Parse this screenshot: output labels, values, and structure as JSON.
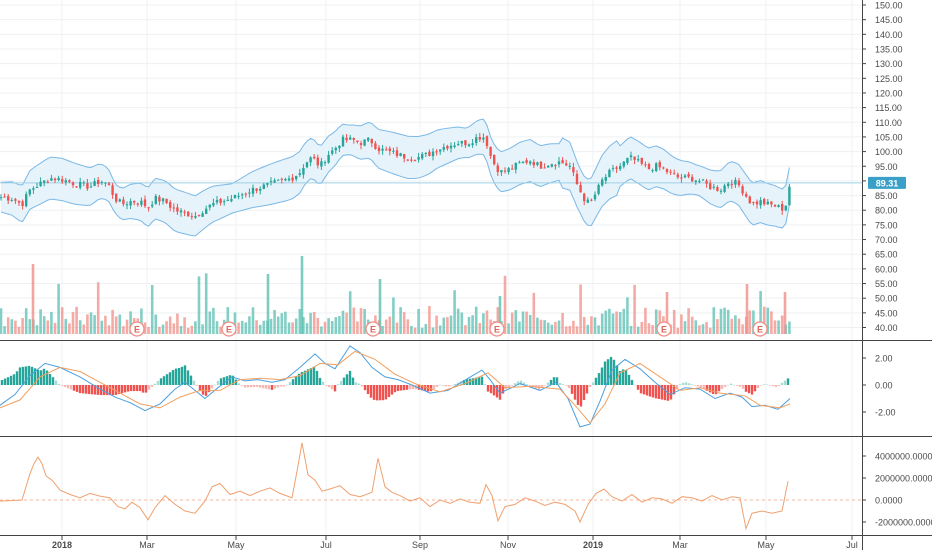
{
  "chart_data": [
    {
      "type": "candlestick",
      "panel": "price",
      "y_axis_ticks": [
        "150.00",
        "145.00",
        "140.00",
        "135.00",
        "130.00",
        "125.00",
        "120.00",
        "115.00",
        "110.00",
        "105.00",
        "100.00",
        "95.00",
        "90.00",
        "85.00",
        "80.00",
        "75.00",
        "70.00",
        "65.00",
        "60.00",
        "55.00",
        "50.00",
        "45.00",
        "40.00"
      ],
      "ylim": [
        37.5,
        151.5
      ],
      "last_price_label": "89.31",
      "last_price": 89.31,
      "overlay": "bollinger-bands",
      "price_path": [
        [
          0,
          84.5
        ],
        [
          12,
          84
        ],
        [
          22,
          82
        ],
        [
          30,
          87
        ],
        [
          40,
          89
        ],
        [
          50,
          91
        ],
        [
          62,
          90.5
        ],
        [
          75,
          89
        ],
        [
          90,
          88
        ],
        [
          100,
          90
        ],
        [
          108,
          89
        ],
        [
          115,
          84
        ],
        [
          122,
          82
        ],
        [
          130,
          83
        ],
        [
          140,
          83
        ],
        [
          148,
          81
        ],
        [
          155,
          84
        ],
        [
          165,
          83
        ],
        [
          175,
          80
        ],
        [
          185,
          79
        ],
        [
          195,
          78
        ],
        [
          203,
          80
        ],
        [
          212,
          82
        ],
        [
          222,
          83
        ],
        [
          232,
          84
        ],
        [
          242,
          85.5
        ],
        [
          252,
          87
        ],
        [
          262,
          88
        ],
        [
          272,
          89
        ],
        [
          282,
          90
        ],
        [
          292,
          91
        ],
        [
          300,
          93
        ],
        [
          305,
          96
        ],
        [
          312,
          98
        ],
        [
          320,
          95
        ],
        [
          328,
          99
        ],
        [
          335,
          101
        ],
        [
          342,
          104
        ],
        [
          352,
          104
        ],
        [
          360,
          103
        ],
        [
          370,
          104
        ],
        [
          378,
          101
        ],
        [
          388,
          100
        ],
        [
          398,
          99
        ],
        [
          408,
          98
        ],
        [
          418,
          98
        ],
        [
          428,
          99
        ],
        [
          438,
          101
        ],
        [
          448,
          102
        ],
        [
          458,
          103
        ],
        [
          468,
          103
        ],
        [
          478,
          105
        ],
        [
          485,
          105
        ],
        [
          492,
          97
        ],
        [
          500,
          93
        ],
        [
          510,
          94
        ],
        [
          520,
          96
        ],
        [
          530,
          97
        ],
        [
          540,
          95
        ],
        [
          550,
          96
        ],
        [
          560,
          96.5
        ],
        [
          570,
          95
        ],
        [
          578,
          88
        ],
        [
          584,
          84
        ],
        [
          590,
          82
        ],
        [
          596,
          86
        ],
        [
          602,
          90
        ],
        [
          610,
          93
        ],
        [
          620,
          95
        ],
        [
          630,
          98
        ],
        [
          640,
          96
        ],
        [
          648,
          94
        ],
        [
          656,
          95
        ],
        [
          664,
          94
        ],
        [
          672,
          92
        ],
        [
          680,
          91
        ],
        [
          690,
          91
        ],
        [
          700,
          90
        ],
        [
          710,
          88
        ],
        [
          720,
          87
        ],
        [
          730,
          90
        ],
        [
          738,
          89
        ],
        [
          744,
          86
        ],
        [
          752,
          82
        ],
        [
          760,
          83
        ],
        [
          768,
          82
        ],
        [
          775,
          81.5
        ],
        [
          782,
          80.5
        ],
        [
          786,
          82
        ],
        [
          790,
          89.31
        ]
      ],
      "earnings_markers": [
        "E",
        "E",
        "E",
        "E",
        "E",
        "E"
      ]
    },
    {
      "type": "bar",
      "panel": "volume",
      "description_colors": {
        "up": "#5bbfb2",
        "down": "#f08f87"
      }
    },
    {
      "type": "line",
      "panel": "macd",
      "y_axis_ticks": [
        "2.00",
        "0.00",
        "-2.00"
      ],
      "ylim": [
        -3.2,
        3.2
      ],
      "macd_path": [
        [
          0,
          -1.5
        ],
        [
          15,
          -0.7
        ],
        [
          30,
          0.7
        ],
        [
          45,
          1.6
        ],
        [
          60,
          1.3
        ],
        [
          80,
          0.6
        ],
        [
          100,
          -0.3
        ],
        [
          115,
          -0.9
        ],
        [
          130,
          -1.3
        ],
        [
          145,
          -1.9
        ],
        [
          160,
          -1.4
        ],
        [
          175,
          -0.3
        ],
        [
          185,
          0.2
        ],
        [
          195,
          -0.4
        ],
        [
          205,
          -1.0
        ],
        [
          218,
          -0.2
        ],
        [
          232,
          0.6
        ],
        [
          245,
          0.3
        ],
        [
          258,
          0.4
        ],
        [
          272,
          0.2
        ],
        [
          285,
          0.4
        ],
        [
          300,
          1.3
        ],
        [
          315,
          2.3
        ],
        [
          325,
          1.6
        ],
        [
          335,
          1.2
        ],
        [
          350,
          2.9
        ],
        [
          360,
          2.4
        ],
        [
          372,
          1.3
        ],
        [
          385,
          0.6
        ],
        [
          398,
          0.4
        ],
        [
          412,
          0.0
        ],
        [
          430,
          -0.6
        ],
        [
          448,
          -0.4
        ],
        [
          468,
          0.5
        ],
        [
          482,
          1.1
        ],
        [
          490,
          0.4
        ],
        [
          500,
          -0.6
        ],
        [
          520,
          0.1
        ],
        [
          540,
          -0.4
        ],
        [
          556,
          0.2
        ],
        [
          568,
          -1.0
        ],
        [
          580,
          -3.1
        ],
        [
          590,
          -2.9
        ],
        [
          600,
          -1.2
        ],
        [
          612,
          1.1
        ],
        [
          625,
          1.9
        ],
        [
          640,
          1.2
        ],
        [
          655,
          0.2
        ],
        [
          670,
          -0.7
        ],
        [
          685,
          -0.2
        ],
        [
          700,
          -0.3
        ],
        [
          715,
          -1.0
        ],
        [
          730,
          -0.6
        ],
        [
          742,
          -0.9
        ],
        [
          752,
          -1.6
        ],
        [
          765,
          -1.5
        ],
        [
          778,
          -1.8
        ],
        [
          790,
          -1.0
        ]
      ],
      "signal_path": [
        [
          0,
          -1.7
        ],
        [
          20,
          -1.1
        ],
        [
          40,
          0.6
        ],
        [
          60,
          1.3
        ],
        [
          80,
          1.0
        ],
        [
          100,
          0.2
        ],
        [
          120,
          -0.6
        ],
        [
          140,
          -1.4
        ],
        [
          160,
          -1.7
        ],
        [
          180,
          -0.9
        ],
        [
          200,
          -0.4
        ],
        [
          220,
          -0.4
        ],
        [
          240,
          0.4
        ],
        [
          260,
          0.5
        ],
        [
          280,
          0.4
        ],
        [
          300,
          0.7
        ],
        [
          320,
          1.6
        ],
        [
          338,
          1.5
        ],
        [
          355,
          2.5
        ],
        [
          375,
          1.9
        ],
        [
          395,
          0.8
        ],
        [
          415,
          0.1
        ],
        [
          440,
          -0.5
        ],
        [
          465,
          0.1
        ],
        [
          488,
          0.9
        ],
        [
          505,
          -0.2
        ],
        [
          530,
          -0.1
        ],
        [
          560,
          -0.3
        ],
        [
          575,
          -1.5
        ],
        [
          590,
          -2.8
        ],
        [
          605,
          -1.4
        ],
        [
          620,
          0.9
        ],
        [
          640,
          1.6
        ],
        [
          660,
          0.6
        ],
        [
          680,
          -0.4
        ],
        [
          700,
          -0.2
        ],
        [
          720,
          -0.6
        ],
        [
          745,
          -0.8
        ],
        [
          760,
          -1.5
        ],
        [
          780,
          -1.7
        ],
        [
          790,
          -1.4
        ]
      ]
    },
    {
      "type": "line",
      "panel": "oscillator",
      "y_axis_ticks": [
        "4000000.0000",
        "2000000.0000",
        "0.0000",
        "-2000000.0000"
      ],
      "ylim": [
        -4200000,
        5200000
      ],
      "path": [
        [
          0,
          -100000
        ],
        [
          10,
          -50000
        ],
        [
          22,
          0
        ],
        [
          30,
          2400000
        ],
        [
          34,
          3300000
        ],
        [
          38,
          3900000
        ],
        [
          42,
          3300000
        ],
        [
          46,
          2200000
        ],
        [
          52,
          1800000
        ],
        [
          60,
          900000
        ],
        [
          70,
          500000
        ],
        [
          80,
          200000
        ],
        [
          90,
          600000
        ],
        [
          100,
          350000
        ],
        [
          110,
          200000
        ],
        [
          118,
          -600000
        ],
        [
          125,
          -800000
        ],
        [
          132,
          -200000
        ],
        [
          140,
          -700000
        ],
        [
          148,
          -1800000
        ],
        [
          155,
          -700000
        ],
        [
          165,
          400000
        ],
        [
          175,
          -400000
        ],
        [
          185,
          -1000000
        ],
        [
          195,
          -1200000
        ],
        [
          205,
          -100000
        ],
        [
          212,
          1200000
        ],
        [
          220,
          1500000
        ],
        [
          230,
          500000
        ],
        [
          240,
          800000
        ],
        [
          250,
          400000
        ],
        [
          260,
          800000
        ],
        [
          270,
          1100000
        ],
        [
          280,
          600000
        ],
        [
          292,
          200000
        ],
        [
          298,
          3100000
        ],
        [
          302,
          5200000
        ],
        [
          308,
          2300000
        ],
        [
          315,
          1800000
        ],
        [
          322,
          800000
        ],
        [
          330,
          1000000
        ],
        [
          340,
          1300000
        ],
        [
          350,
          500000
        ],
        [
          360,
          300000
        ],
        [
          372,
          700000
        ],
        [
          378,
          3800000
        ],
        [
          385,
          1200000
        ],
        [
          392,
          700000
        ],
        [
          400,
          400000
        ],
        [
          410,
          -100000
        ],
        [
          420,
          200000
        ],
        [
          430,
          -600000
        ],
        [
          440,
          0
        ],
        [
          450,
          -300000
        ],
        [
          460,
          100000
        ],
        [
          470,
          -200000
        ],
        [
          480,
          -300000
        ],
        [
          486,
          1400000
        ],
        [
          492,
          400000
        ],
        [
          498,
          -1900000
        ],
        [
          505,
          -600000
        ],
        [
          515,
          -400000
        ],
        [
          525,
          200000
        ],
        [
          535,
          -100000
        ],
        [
          545,
          -500000
        ],
        [
          555,
          -200000
        ],
        [
          565,
          -400000
        ],
        [
          575,
          -1000000
        ],
        [
          580,
          -2000000
        ],
        [
          588,
          -400000
        ],
        [
          596,
          600000
        ],
        [
          604,
          1000000
        ],
        [
          612,
          300000
        ],
        [
          622,
          -100000
        ],
        [
          632,
          500000
        ],
        [
          642,
          -200000
        ],
        [
          652,
          200000
        ],
        [
          662,
          100000
        ],
        [
          672,
          -300000
        ],
        [
          682,
          300000
        ],
        [
          692,
          200000
        ],
        [
          702,
          -100000
        ],
        [
          712,
          400000
        ],
        [
          722,
          0
        ],
        [
          732,
          300000
        ],
        [
          740,
          200000
        ],
        [
          746,
          -2600000
        ],
        [
          752,
          -1200000
        ],
        [
          762,
          -1000000
        ],
        [
          772,
          -1200000
        ],
        [
          782,
          -1000000
        ],
        [
          788,
          1700000
        ]
      ]
    }
  ],
  "x_axis": {
    "labels": [
      "2018",
      "Mar",
      "May",
      "Jul",
      "Sep",
      "Nov",
      "2019",
      "Mar",
      "May",
      "Jul"
    ],
    "bold": [
      "2018",
      "2019"
    ]
  },
  "colors": {
    "up": "#26a69a",
    "down": "#ef5350",
    "band": "#7ab8e6",
    "band_fill": "#e6f3fb",
    "macd": "#4a9fe0",
    "signal": "#f0a060",
    "osc": "#f0a070",
    "last_price_bg": "#3aa0c8",
    "grid": "#eef0f3",
    "axis_text": "#4a4a4a"
  }
}
